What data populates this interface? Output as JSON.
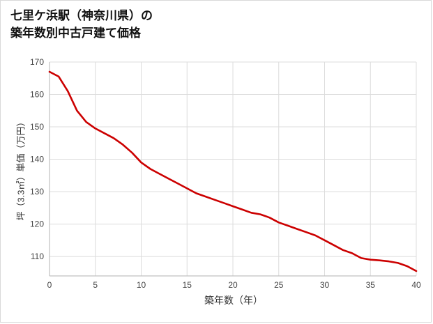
{
  "title": {
    "line1": "七里ケ浜駅（神奈川県）の",
    "line2": "築年数別中古戸建て価格"
  },
  "chart_data": {
    "type": "line",
    "title": "七里ケ浜駅（神奈川県）の築年数別中古戸建て価格",
    "xlabel": "築年数（年）",
    "ylabel": "坪（3.3㎡）単価（万円）",
    "x": [
      0,
      1,
      2,
      3,
      4,
      5,
      6,
      7,
      8,
      9,
      10,
      11,
      12,
      13,
      14,
      15,
      16,
      17,
      18,
      19,
      20,
      21,
      22,
      23,
      24,
      25,
      26,
      27,
      28,
      29,
      30,
      31,
      32,
      33,
      34,
      35,
      36,
      37,
      38,
      39,
      40
    ],
    "values": [
      167,
      165.5,
      161,
      155,
      151.5,
      149.5,
      148,
      146.5,
      144.5,
      142,
      139,
      137,
      135.5,
      134,
      132.5,
      131,
      129.5,
      128.5,
      127.5,
      126.5,
      125.5,
      124.5,
      123.5,
      123,
      122,
      120.5,
      119.5,
      118.5,
      117.5,
      116.5,
      115,
      113.5,
      112,
      111,
      109.5,
      109,
      108.8,
      108.5,
      108,
      107,
      105.5
    ],
    "xlim": [
      0,
      40
    ],
    "ylim": [
      104,
      170
    ],
    "x_ticks": [
      0,
      5,
      10,
      15,
      20,
      25,
      30,
      35,
      40
    ],
    "y_ticks": [
      110,
      120,
      130,
      140,
      150,
      160,
      170
    ],
    "grid": true,
    "legend": "none",
    "line_color": "#cc0000",
    "grid_color": "#dcdcdc",
    "axis_color": "#c0c0c0",
    "tick_color": "#444444"
  }
}
